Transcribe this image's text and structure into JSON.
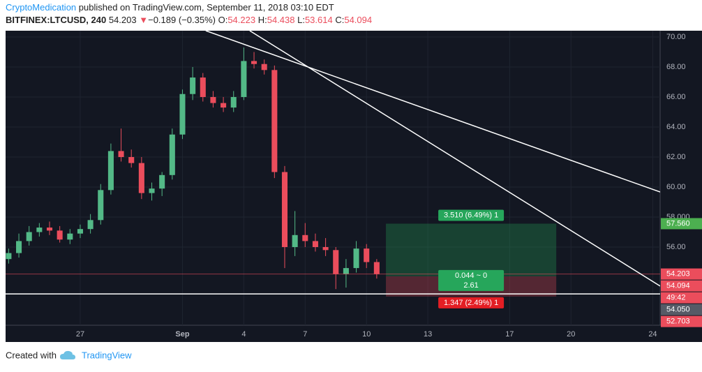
{
  "header": {
    "author": "CryptoMedication",
    "published": " published on TradingView.com, September 11, 2018 03:10 EDT",
    "symbol": "BITFINEX:LTCUSD, 240",
    "last": "54.203",
    "arrow": "▼",
    "change": "−0.189 (−0.35%)",
    "o_label": "O:",
    "o": "54.223",
    "h_label": "H:",
    "h": "54.438",
    "l_label": "L:",
    "l": "53.614",
    "c_label": "C:",
    "c": "54.094"
  },
  "footer": {
    "created": "Created with",
    "brand": "TradingView"
  },
  "chart_data": {
    "type": "candlestick",
    "up_color": "#53b987",
    "down_color": "#eb4d5c",
    "x": [
      -3.5,
      -3,
      -2.5,
      -2,
      -1.5,
      -1,
      -0.5,
      0,
      0.5,
      1,
      1.5,
      2,
      2.5,
      3,
      3.5,
      4,
      4.5,
      5,
      5.5,
      6,
      6.5,
      7,
      7.5,
      8,
      8.5,
      9,
      9.5,
      10,
      10.5,
      11,
      11.5,
      12,
      12.5,
      13,
      13.5,
      14,
      14.5
    ],
    "open": [
      55.2,
      55.6,
      56.4,
      57.0,
      57.3,
      57.1,
      56.5,
      56.9,
      57.2,
      57.8,
      59.8,
      62.4,
      62.0,
      61.6,
      59.6,
      59.9,
      60.8,
      63.5,
      66.2,
      67.3,
      66.0,
      65.6,
      65.3,
      66.0,
      68.4,
      68.2,
      67.8,
      61.0,
      56.0,
      56.8,
      56.4,
      56.0,
      55.8,
      54.2,
      54.6,
      55.9,
      55.0
    ],
    "high": [
      55.9,
      56.9,
      57.4,
      57.6,
      57.7,
      57.4,
      57.2,
      57.5,
      58.2,
      60.2,
      62.9,
      63.9,
      62.5,
      62.0,
      60.3,
      61.0,
      63.9,
      66.5,
      68.0,
      67.6,
      66.4,
      66.0,
      66.4,
      69.3,
      69.0,
      68.5,
      68.1,
      61.4,
      58.4,
      57.6,
      56.9,
      56.6,
      56.0,
      55.2,
      56.4,
      56.2,
      55.2
    ],
    "low": [
      54.9,
      55.3,
      56.1,
      56.7,
      56.8,
      56.3,
      56.2,
      56.6,
      56.9,
      57.5,
      59.5,
      61.7,
      61.3,
      59.2,
      59.1,
      59.4,
      60.5,
      63.2,
      65.8,
      65.7,
      65.3,
      65.0,
      65.0,
      65.8,
      67.9,
      67.5,
      60.6,
      54.6,
      55.4,
      56.0,
      55.7,
      55.4,
      53.2,
      53.3,
      54.3,
      54.6,
      53.9
    ],
    "close": [
      55.6,
      56.4,
      57.0,
      57.3,
      57.1,
      56.5,
      56.9,
      57.2,
      57.8,
      59.8,
      62.4,
      62.0,
      61.6,
      59.6,
      59.9,
      60.8,
      63.5,
      66.2,
      67.3,
      66.0,
      65.6,
      65.3,
      66.0,
      68.4,
      68.2,
      67.8,
      61.0,
      56.0,
      56.8,
      56.4,
      56.0,
      55.8,
      54.2,
      54.6,
      55.9,
      55.0,
      54.2
    ],
    "xlim": [
      -3.65,
      28.36
    ],
    "xticks": [
      {
        "value": 0,
        "label": "27"
      },
      {
        "value": 5,
        "label": "Sep"
      },
      {
        "value": 8,
        "label": "4"
      },
      {
        "value": 11,
        "label": "7"
      },
      {
        "value": 14,
        "label": "10"
      },
      {
        "value": 17,
        "label": "13"
      },
      {
        "value": 21,
        "label": "17"
      },
      {
        "value": 24,
        "label": "20"
      },
      {
        "value": 28,
        "label": "24"
      }
    ],
    "ylim": [
      50.79,
      70.42
    ],
    "yticks": [
      {
        "value": 56,
        "label": "56.00"
      },
      {
        "value": 58,
        "label": "58.000"
      },
      {
        "value": 60,
        "label": "60.00"
      },
      {
        "value": 62,
        "label": "62.00"
      },
      {
        "value": 64,
        "label": "64.00"
      },
      {
        "value": 66,
        "label": "66.00"
      },
      {
        "value": 68,
        "label": "68.00"
      },
      {
        "value": 70,
        "label": "70.00"
      }
    ],
    "grid": true,
    "trend_lines": [
      {
        "x": [
          6.14,
          28.36
        ],
        "y": [
          70.42,
          59.67
        ]
      },
      {
        "x": [
          8.29,
          28.36
        ],
        "y": [
          70.42,
          53.4
        ]
      }
    ],
    "support_line": 52.88,
    "price_line": 54.203,
    "position": {
      "x": [
        14.95,
        23.28
      ],
      "target": 57.56,
      "entry": 54.05,
      "stop": 52.703,
      "target_label": "3.510 (6.49%) 1",
      "entry_label": "0.044 ~ 0",
      "ratio_label": "2.61",
      "stop_label": "1.347 (2.49%) 1"
    },
    "price_markers": [
      {
        "value": 57.56,
        "label": "57.560",
        "color": "#4caf50"
      },
      {
        "value": 54.203,
        "label": "54.203",
        "color": "#eb4d5c"
      },
      {
        "value": 54.094,
        "label": "54.094",
        "color": "#eb4d5c"
      },
      {
        "label": "49:42",
        "color": "#eb4d5c"
      },
      {
        "value": 54.05,
        "label": "54.050",
        "color": "#555a66"
      },
      {
        "value": 52.703,
        "label": "52.703",
        "color": "#eb4d5c"
      }
    ]
  }
}
